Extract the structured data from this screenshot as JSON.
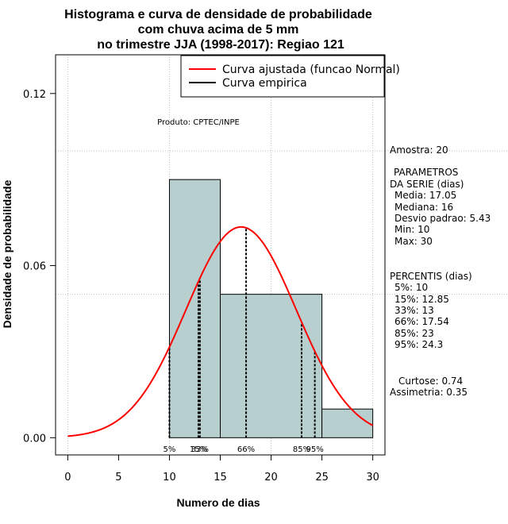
{
  "chart_data": {
    "type": "histogram",
    "title_lines": [
      "Histograma e curva de densidade de probabilidade",
      "com chuva acima de 5 mm",
      "no trimestre JJA (1998-2017): Regiao 121"
    ],
    "xlabel": "Numero de dias",
    "ylabel": "Densidade de probabilidade",
    "xlim": [
      -1.2,
      31.2
    ],
    "ylim": [
      -0.006,
      0.1335
    ],
    "xticks": [
      0,
      5,
      10,
      15,
      20,
      25,
      30
    ],
    "yticks": [
      0.0,
      0.06,
      0.12
    ],
    "ytick_labels": [
      "0.00",
      "0.06",
      "0.12"
    ],
    "bins": [
      {
        "start": 10,
        "end": 15,
        "density": 0.09
      },
      {
        "start": 15,
        "end": 25,
        "density": 0.05
      },
      {
        "start": 25,
        "end": 30,
        "density": 0.01
      }
    ],
    "hgrid": [
      0.05,
      0.1
    ],
    "vgrid": [
      0,
      10,
      20,
      30
    ],
    "normal_curve": {
      "name": "Curva ajustada (funcao Normal)",
      "mean": 17.05,
      "sd": 5.43,
      "range": [
        0,
        30
      ],
      "color": "#ff0000"
    },
    "empirical_curve": {
      "name": "Curva empirica",
      "color": "#000000"
    },
    "percentile_lines": [
      {
        "label": "5%",
        "x": 10
      },
      {
        "label": "15%",
        "x": 12.85
      },
      {
        "label": "33%",
        "x": 13
      },
      {
        "label": "66%",
        "x": 17.54
      },
      {
        "label": "85%",
        "x": 23
      },
      {
        "label": "95%",
        "x": 24.3
      }
    ],
    "legend_position": "top-right",
    "bar_color": "#b7cfcf"
  },
  "annotation": "Produto: CPTEC/INPE",
  "side_panel": {
    "amostra": "Amostra: 20",
    "parametros_title1": "PARAMETROS",
    "parametros_title2": "DA SERIE (dias)",
    "media": "Media: 17.05",
    "mediana": "Mediana: 16",
    "desvio": "Desvio padrao: 5.43",
    "min": "Min: 10",
    "max": "Max: 30",
    "percentis_title": "PERCENTIS (dias)",
    "p5": "5%: 10",
    "p15": "15%: 12.85",
    "p33": "33%: 13",
    "p66": "66%: 17.54",
    "p85": "85%: 23",
    "p95": "95%: 24.3",
    "curtose": "Curtose: 0.74",
    "assimetria": "Assimetria: 0.35"
  }
}
